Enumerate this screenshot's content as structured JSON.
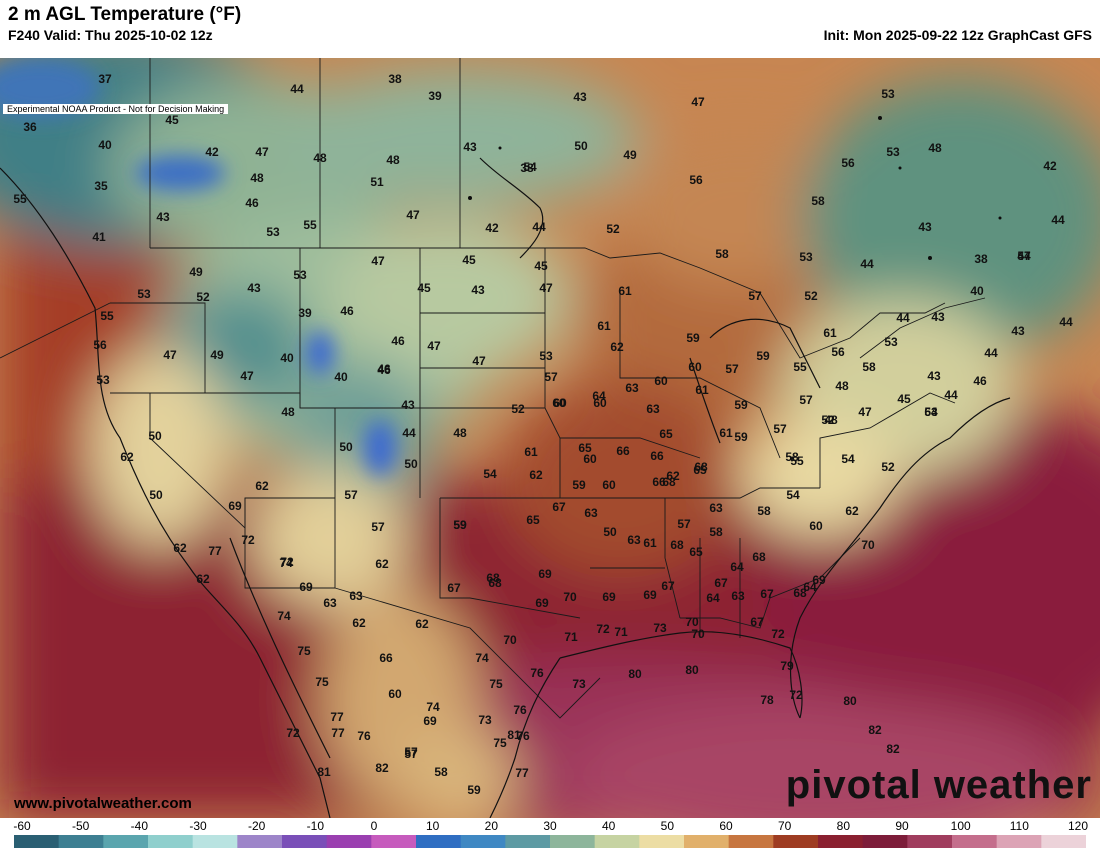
{
  "header": {
    "title": "2 m AGL Temperature (°F)",
    "valid": "F240 Valid: Thu 2025-10-02 12z",
    "init": "Init: Mon 2025-09-22 12z GraphCast GFS",
    "disclaimer": "Experimental NOAA Product - Not for Decision Making"
  },
  "branding": {
    "watermark": "pivotal weather",
    "site": "www.pivotalweather.com"
  },
  "colorbar": {
    "ticks": [
      "-60",
      "-50",
      "-40",
      "-30",
      "-20",
      "-10",
      "0",
      "10",
      "20",
      "30",
      "40",
      "50",
      "60",
      "70",
      "80",
      "90",
      "100",
      "110",
      "120"
    ],
    "colors": [
      "#2a5f73",
      "#3d7f92",
      "#5aa5ae",
      "#8fcfcd",
      "#b9e3e1",
      "#9d85c9",
      "#7a4fb8",
      "#9a3fb0",
      "#c65bbd",
      "#2f6ec2",
      "#3f88c3",
      "#5d9aa3",
      "#8db59b",
      "#c6d3a2",
      "#ecdda4",
      "#e1b06b",
      "#c77640",
      "#9e3c22",
      "#8a2030",
      "#7d1d3a",
      "#a03d5e",
      "#c46e8c",
      "#dca3b5",
      "#ecd2d9"
    ]
  },
  "map_values": [
    {
      "v": "37"
    },
    {
      "v": "44"
    },
    {
      "v": "38"
    },
    {
      "v": "39"
    },
    {
      "v": "43"
    },
    {
      "v": "47"
    },
    {
      "v": "53"
    },
    {
      "v": "36"
    },
    {
      "v": "45"
    },
    {
      "v": "40"
    },
    {
      "v": "42"
    },
    {
      "v": "47"
    },
    {
      "v": "48"
    },
    {
      "v": "48"
    },
    {
      "v": "38"
    },
    {
      "v": "43"
    },
    {
      "v": "50"
    },
    {
      "v": "49"
    },
    {
      "v": "53"
    },
    {
      "v": "48"
    },
    {
      "v": "56"
    },
    {
      "v": "42"
    },
    {
      "v": "35"
    },
    {
      "v": "48"
    },
    {
      "v": "51"
    },
    {
      "v": "54"
    },
    {
      "v": "56"
    },
    {
      "v": "58"
    },
    {
      "v": "55"
    },
    {
      "v": "46"
    },
    {
      "v": "43"
    },
    {
      "v": "53"
    },
    {
      "v": "55"
    },
    {
      "v": "47"
    },
    {
      "v": "42"
    },
    {
      "v": "44"
    },
    {
      "v": "52"
    },
    {
      "v": "43"
    },
    {
      "v": "44"
    },
    {
      "v": "41"
    },
    {
      "v": "49"
    },
    {
      "v": "53"
    },
    {
      "v": "47"
    },
    {
      "v": "45"
    },
    {
      "v": "45"
    },
    {
      "v": "57"
    },
    {
      "v": "58"
    },
    {
      "v": "53"
    },
    {
      "v": "44"
    },
    {
      "v": "38"
    },
    {
      "v": "44"
    },
    {
      "v": "53"
    },
    {
      "v": "52"
    },
    {
      "v": "43"
    },
    {
      "v": "45"
    },
    {
      "v": "43"
    },
    {
      "v": "47"
    },
    {
      "v": "61"
    },
    {
      "v": "57"
    },
    {
      "v": "52"
    },
    {
      "v": "40"
    },
    {
      "v": "55"
    },
    {
      "v": "39"
    },
    {
      "v": "46"
    },
    {
      "v": "46"
    },
    {
      "v": "61"
    },
    {
      "v": "44"
    },
    {
      "v": "43"
    },
    {
      "v": "44"
    },
    {
      "v": "43"
    },
    {
      "v": "56"
    },
    {
      "v": "47"
    },
    {
      "v": "49"
    },
    {
      "v": "40"
    },
    {
      "v": "46"
    },
    {
      "v": "47"
    },
    {
      "v": "47"
    },
    {
      "v": "53"
    },
    {
      "v": "62"
    },
    {
      "v": "59"
    },
    {
      "v": "59"
    },
    {
      "v": "61"
    },
    {
      "v": "53"
    },
    {
      "v": "55"
    },
    {
      "v": "44"
    },
    {
      "v": "53"
    },
    {
      "v": "47"
    },
    {
      "v": "40"
    },
    {
      "v": "46"
    },
    {
      "v": "57"
    },
    {
      "v": "60"
    },
    {
      "v": "60"
    },
    {
      "v": "60"
    },
    {
      "v": "57"
    },
    {
      "v": "56"
    },
    {
      "v": "58"
    },
    {
      "v": "43"
    },
    {
      "v": "46"
    },
    {
      "v": "60"
    },
    {
      "v": "48"
    },
    {
      "v": "43"
    },
    {
      "v": "52"
    },
    {
      "v": "60"
    },
    {
      "v": "64"
    },
    {
      "v": "63"
    },
    {
      "v": "61"
    },
    {
      "v": "59"
    },
    {
      "v": "57"
    },
    {
      "v": "48"
    },
    {
      "v": "47"
    },
    {
      "v": "45"
    },
    {
      "v": "44"
    },
    {
      "v": "53"
    },
    {
      "v": "50"
    },
    {
      "v": "50"
    },
    {
      "v": "44"
    },
    {
      "v": "48"
    },
    {
      "v": "63"
    },
    {
      "v": "65"
    },
    {
      "v": "61"
    },
    {
      "v": "57"
    },
    {
      "v": "52"
    },
    {
      "v": "64"
    },
    {
      "v": "60"
    },
    {
      "v": "48"
    },
    {
      "v": "50"
    },
    {
      "v": "61"
    },
    {
      "v": "65"
    },
    {
      "v": "66"
    },
    {
      "v": "66"
    },
    {
      "v": "65"
    },
    {
      "v": "59"
    },
    {
      "v": "55"
    },
    {
      "v": "62"
    },
    {
      "v": "57"
    },
    {
      "v": "62"
    },
    {
      "v": "54"
    },
    {
      "v": "62"
    },
    {
      "v": "68"
    },
    {
      "v": "58"
    },
    {
      "v": "54"
    },
    {
      "v": "52"
    },
    {
      "v": "59"
    },
    {
      "v": "60"
    },
    {
      "v": "62"
    },
    {
      "v": "66"
    },
    {
      "v": "68"
    },
    {
      "v": "63"
    },
    {
      "v": "58"
    },
    {
      "v": "54"
    },
    {
      "v": "65"
    },
    {
      "v": "57"
    },
    {
      "v": "50"
    },
    {
      "v": "69"
    },
    {
      "v": "59"
    },
    {
      "v": "67"
    },
    {
      "v": "60"
    },
    {
      "v": "62"
    },
    {
      "v": "59"
    },
    {
      "v": "63"
    },
    {
      "v": "50"
    },
    {
      "v": "57"
    },
    {
      "v": "58"
    },
    {
      "v": "65"
    },
    {
      "v": "68"
    },
    {
      "v": "68"
    },
    {
      "v": "63"
    },
    {
      "v": "61"
    },
    {
      "v": "64"
    },
    {
      "v": "70"
    },
    {
      "v": "62"
    },
    {
      "v": "77"
    },
    {
      "v": "72"
    },
    {
      "v": "72"
    },
    {
      "v": "62"
    },
    {
      "v": "63"
    },
    {
      "v": "68"
    },
    {
      "v": "69"
    },
    {
      "v": "69"
    },
    {
      "v": "67"
    },
    {
      "v": "64"
    },
    {
      "v": "67"
    },
    {
      "v": "62"
    },
    {
      "v": "74"
    },
    {
      "v": "69"
    },
    {
      "v": "63"
    },
    {
      "v": "67"
    },
    {
      "v": "68"
    },
    {
      "v": "70"
    },
    {
      "v": "69"
    },
    {
      "v": "67"
    },
    {
      "v": "64"
    },
    {
      "v": "68"
    },
    {
      "v": "63"
    },
    {
      "v": "74"
    },
    {
      "v": "62"
    },
    {
      "v": "62"
    },
    {
      "v": "69"
    },
    {
      "v": "70"
    },
    {
      "v": "71"
    },
    {
      "v": "67"
    },
    {
      "v": "69"
    },
    {
      "v": "75"
    },
    {
      "v": "66"
    },
    {
      "v": "74"
    },
    {
      "v": "70"
    },
    {
      "v": "71"
    },
    {
      "v": "72"
    },
    {
      "v": "73"
    },
    {
      "v": "70"
    },
    {
      "v": "72"
    },
    {
      "v": "76"
    },
    {
      "v": "75"
    },
    {
      "v": "73"
    },
    {
      "v": "80"
    },
    {
      "v": "80"
    },
    {
      "v": "79"
    },
    {
      "v": "72"
    },
    {
      "v": "75"
    },
    {
      "v": "60"
    },
    {
      "v": "74"
    },
    {
      "v": "78"
    },
    {
      "v": "80"
    },
    {
      "v": "77"
    },
    {
      "v": "69"
    },
    {
      "v": "73"
    },
    {
      "v": "76"
    },
    {
      "v": "76"
    },
    {
      "v": "72"
    },
    {
      "v": "77"
    },
    {
      "v": "76"
    },
    {
      "v": "82"
    },
    {
      "v": "75"
    },
    {
      "v": "81"
    },
    {
      "v": "82"
    },
    {
      "v": "57"
    },
    {
      "v": "58"
    },
    {
      "v": "82"
    },
    {
      "v": "57"
    },
    {
      "v": "77"
    },
    {
      "v": "81"
    },
    {
      "v": "59"
    }
  ]
}
